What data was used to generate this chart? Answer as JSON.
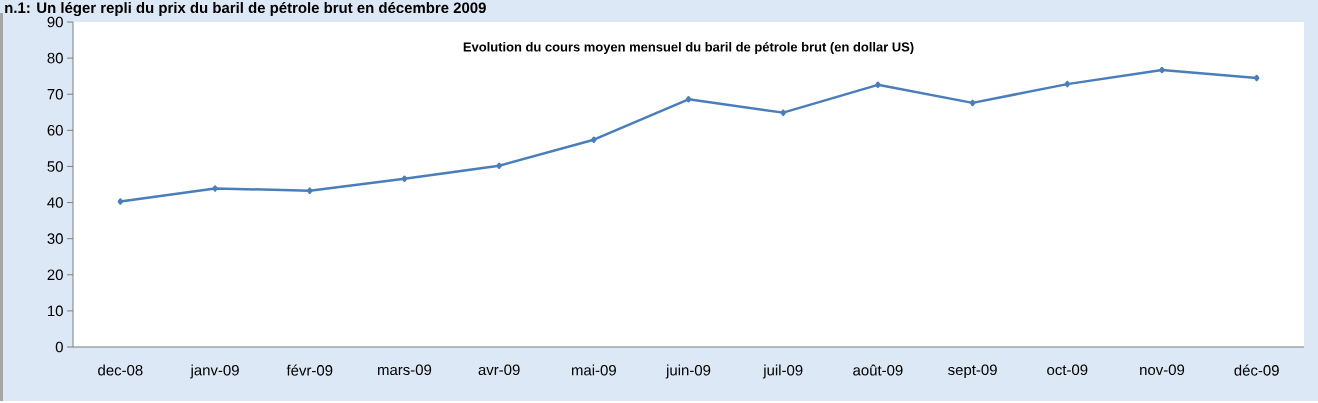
{
  "chart_data": {
    "type": "line",
    "title": "n.1: Un léger repli du prix du baril de pétrole brut en décembre 2009",
    "subtitle": "Evolution du cours moyen mensuel du baril de pétrole brut (en dollar US)",
    "categories": [
      "dec-08",
      "janv-09",
      "févr-09",
      "mars-09",
      "avr-09",
      "mai-09",
      "juin-09",
      "juil-09",
      "août-09",
      "sept-09",
      "oct-09",
      "nov-09",
      "déc-09"
    ],
    "values": [
      40.3,
      43.9,
      43.3,
      46.6,
      50.2,
      57.4,
      68.6,
      64.9,
      72.6,
      67.6,
      72.8,
      76.7,
      74.5
    ],
    "color": "#4a7ebb",
    "ylim": [
      0,
      90
    ],
    "yticks": [
      0,
      10,
      20,
      30,
      40,
      50,
      60,
      70,
      80,
      90
    ],
    "marker": "diamond",
    "line_style": "solid"
  }
}
